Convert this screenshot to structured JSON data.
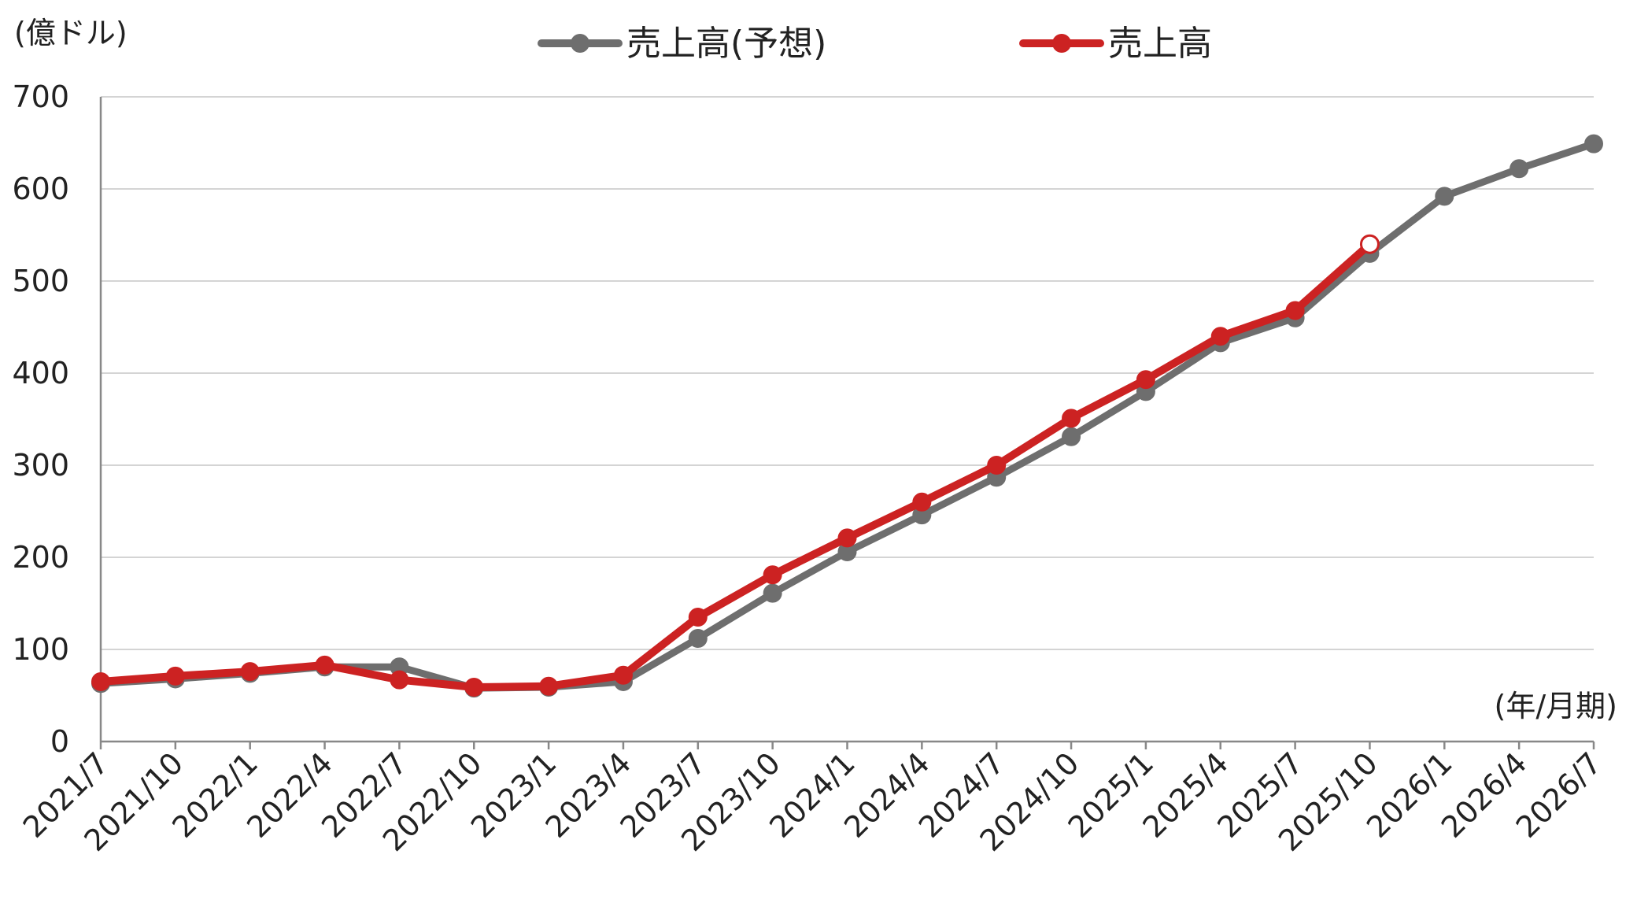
{
  "chart_data": {
    "type": "line",
    "title": "",
    "ylabel": "(億ドル)",
    "xlabel": "(年/月期)",
    "ylim": [
      0,
      700
    ],
    "yticks": [
      0,
      100,
      200,
      300,
      400,
      500,
      600,
      700
    ],
    "grid": true,
    "legend_position": "top-center",
    "categories": [
      "2021/7",
      "2021/10",
      "2022/1",
      "2022/4",
      "2022/7",
      "2022/10",
      "2023/1",
      "2023/4",
      "2023/7",
      "2023/10",
      "2024/1",
      "2024/4",
      "2024/7",
      "2024/10",
      "2025/1",
      "2025/4",
      "2025/7",
      "2025/10",
      "2026/1",
      "2026/4",
      "2026/7"
    ],
    "series": [
      {
        "name": "売上高(予想)",
        "color": "#6e6e6e",
        "values": [
          63,
          68,
          74,
          81,
          81,
          58,
          59,
          65,
          112,
          161,
          206,
          246,
          287,
          331,
          380,
          433,
          460,
          530,
          592,
          622,
          649
        ]
      },
      {
        "name": "売上高",
        "color": "#cc2222",
        "values": [
          65,
          71,
          76,
          83,
          67,
          59,
          60,
          72,
          135,
          181,
          221,
          260,
          300,
          351,
          393,
          440,
          468,
          540,
          null,
          null,
          null
        ],
        "hollow_last_point": true
      }
    ]
  }
}
